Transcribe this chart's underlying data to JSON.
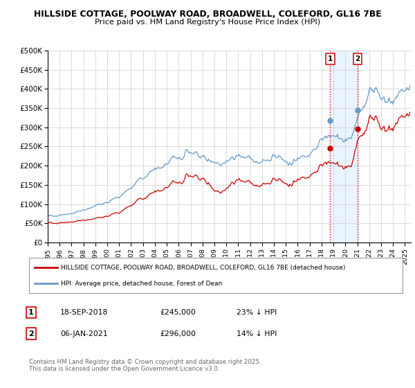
{
  "title1": "HILLSIDE COTTAGE, POOLWAY ROAD, BROADWELL, COLEFORD, GL16 7BE",
  "title2": "Price paid vs. HM Land Registry's House Price Index (HPI)",
  "legend_line1": "HILLSIDE COTTAGE, POOLWAY ROAD, BROADWELL, COLEFORD, GL16 7BE (detached house)",
  "legend_line2": "HPI: Average price, detached house, Forest of Dean",
  "marker1_date": "18-SEP-2018",
  "marker1_price": "£245,000",
  "marker1_hpi": "23% ↓ HPI",
  "marker2_date": "06-JAN-2021",
  "marker2_price": "£296,000",
  "marker2_hpi": "14% ↓ HPI",
  "footer": "Contains HM Land Registry data © Crown copyright and database right 2025.\nThis data is licensed under the Open Government Licence v3.0.",
  "red_color": "#cc0000",
  "blue_color": "#6699cc",
  "marker_vline_color": "#dd0000",
  "marker_box_color": "#cc0000",
  "bg_shading_color": "#ddeeff",
  "ylim": [
    0,
    500000
  ],
  "yticks": [
    0,
    50000,
    100000,
    150000,
    200000,
    250000,
    300000,
    350000,
    400000,
    450000,
    500000
  ],
  "ytick_labels": [
    "£0",
    "£50K",
    "£100K",
    "£150K",
    "£200K",
    "£250K",
    "£300K",
    "£350K",
    "£400K",
    "£450K",
    "£500K"
  ],
  "xlim_start": 1995.0,
  "xlim_end": 2025.5,
  "xtick_years": [
    1995,
    1996,
    1997,
    1998,
    1999,
    2000,
    2001,
    2002,
    2003,
    2004,
    2005,
    2006,
    2007,
    2008,
    2009,
    2010,
    2011,
    2012,
    2013,
    2014,
    2015,
    2016,
    2017,
    2018,
    2019,
    2020,
    2021,
    2022,
    2023,
    2024,
    2025
  ],
  "marker1_x": 2018.72,
  "marker2_x": 2021.02,
  "marker1_y_red": 245000,
  "marker1_y_blue": 317000,
  "marker2_y_red": 296000,
  "marker2_y_blue": 344000
}
